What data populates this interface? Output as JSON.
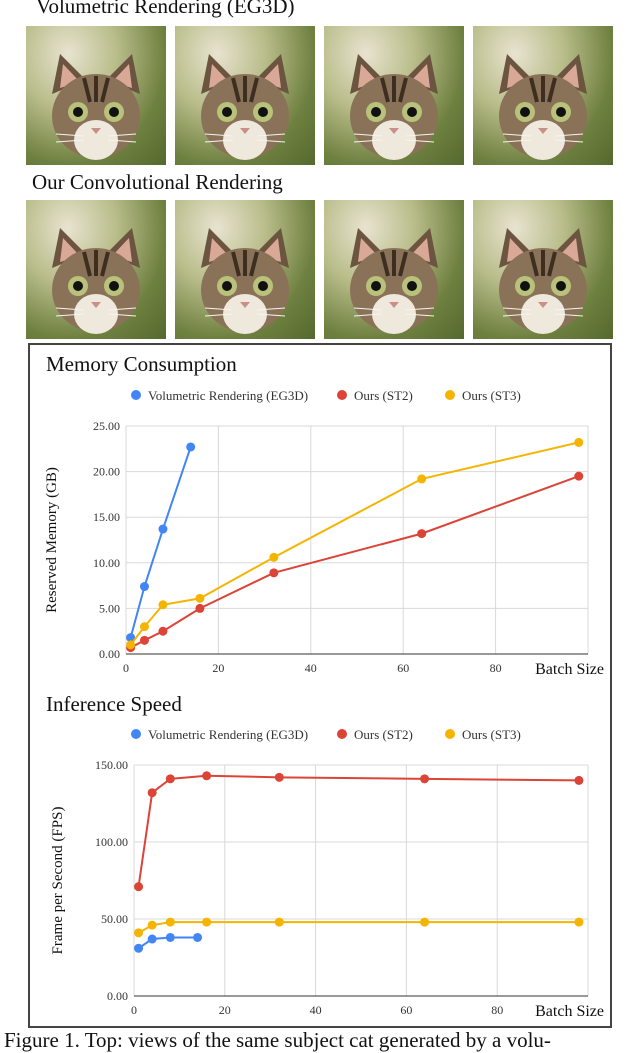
{
  "figure": {
    "top_label": "Volumetric Rendering (EG3D)",
    "bottom_label": "Our Convolutional Rendering",
    "top_row_alt": [
      "cat view 1",
      "cat view 2",
      "cat view 3",
      "cat view 4"
    ],
    "bottom_row_alt": [
      "cat view 1",
      "cat view 2",
      "cat view 3",
      "cat view 4"
    ],
    "caption": "Figure 1. Top: views of the same subject cat generated by a volu-"
  },
  "colors": {
    "eg3d": "#4285f4",
    "st2": "#db4437",
    "st3": "#f4b400",
    "grid": "#d9d9d9"
  },
  "chart_data": [
    {
      "type": "line",
      "title": "Memory Consumption",
      "xlabel": "Batch Size",
      "ylabel": "Reserved Memory (GB)",
      "xlim": [
        0,
        100
      ],
      "ylim": [
        0,
        25
      ],
      "xticks": [
        0,
        20,
        40,
        60,
        80
      ],
      "xtick_labels": [
        "0",
        "20",
        "40",
        "60",
        "80"
      ],
      "yticks": [
        0,
        5,
        10,
        15,
        20,
        25
      ],
      "ytick_labels": [
        "0.00",
        "5.00",
        "10.00",
        "15.00",
        "20.00",
        "25.00"
      ],
      "legend": "top",
      "series": [
        {
          "name": "Volumetric Rendering (EG3D)",
          "x": [
            1,
            4,
            8,
            14
          ],
          "y": [
            1.8,
            7.4,
            13.7,
            22.7
          ]
        },
        {
          "name": "Ours (ST2)",
          "x": [
            1,
            4,
            8,
            16,
            32,
            64,
            98
          ],
          "y": [
            0.7,
            1.5,
            2.5,
            5.0,
            8.9,
            13.2,
            19.5
          ]
        },
        {
          "name": "Ours (ST3)",
          "x": [
            1,
            4,
            8,
            16,
            32,
            64,
            98
          ],
          "y": [
            1.0,
            3.0,
            5.4,
            6.1,
            10.6,
            19.2,
            23.2
          ]
        }
      ]
    },
    {
      "type": "line",
      "title": "Inference Speed",
      "xlabel": "Batch Size",
      "ylabel": "Frame per Second (FPS)",
      "xlim": [
        0,
        100
      ],
      "ylim": [
        0,
        150
      ],
      "xticks": [
        0,
        20,
        40,
        60,
        80
      ],
      "xtick_labels": [
        "0",
        "20",
        "40",
        "60",
        "80"
      ],
      "yticks": [
        0,
        50,
        100,
        150
      ],
      "ytick_labels": [
        "0.00",
        "50.00",
        "100.00",
        "150.00"
      ],
      "legend": "top",
      "series": [
        {
          "name": "Volumetric Rendering (EG3D)",
          "x": [
            1,
            4,
            8,
            14
          ],
          "y": [
            31,
            37,
            38,
            38
          ]
        },
        {
          "name": "Ours (ST2)",
          "x": [
            1,
            4,
            8,
            16,
            32,
            64,
            98
          ],
          "y": [
            71,
            132,
            141,
            143,
            142,
            141,
            140
          ]
        },
        {
          "name": "Ours (ST3)",
          "x": [
            1,
            4,
            8,
            16,
            32,
            64,
            98
          ],
          "y": [
            41,
            46,
            48,
            48,
            48,
            48,
            48
          ]
        }
      ]
    }
  ]
}
